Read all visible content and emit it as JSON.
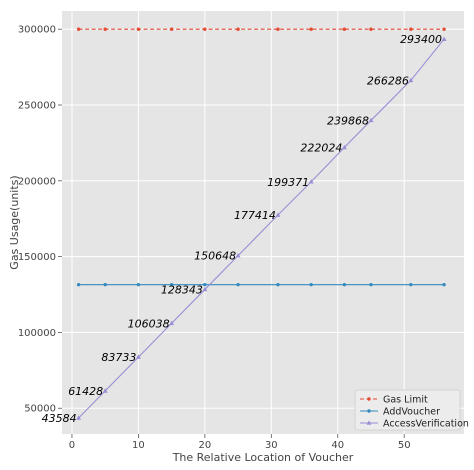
{
  "chart_data": {
    "type": "line",
    "title": "",
    "xlabel": "The Relative Location of Voucher",
    "ylabel": "Gas Usage(units)",
    "xlim": [
      -1.5,
      59
    ],
    "ylim": [
      33000,
      312000
    ],
    "xticks": [
      0,
      10,
      20,
      30,
      40,
      50
    ],
    "yticks": [
      50000,
      100000,
      150000,
      200000,
      250000,
      300000
    ],
    "grid": true,
    "legend_position": "lower-right",
    "series": [
      {
        "name": "Gas Limit",
        "color": "#e24a33",
        "style": "dashed",
        "marker": "point",
        "x": [
          1,
          5,
          10,
          15,
          20,
          25,
          31,
          36,
          41,
          45,
          51,
          56
        ],
        "y": [
          300000,
          300000,
          300000,
          300000,
          300000,
          300000,
          300000,
          300000,
          300000,
          300000,
          300000,
          300000
        ]
      },
      {
        "name": "AddVoucher",
        "color": "#348abd",
        "style": "solid",
        "marker": "point",
        "x": [
          1,
          5,
          10,
          15,
          20,
          25,
          31,
          36,
          41,
          45,
          51,
          56
        ],
        "y": [
          131500,
          131500,
          131500,
          131500,
          131500,
          131500,
          131500,
          131500,
          131500,
          131500,
          131500,
          131500
        ]
      },
      {
        "name": "AccessVerification",
        "color": "#988ed5",
        "style": "solid",
        "marker": "triangle",
        "x": [
          1,
          5,
          10,
          15,
          20,
          25,
          31,
          36,
          41,
          45,
          51,
          56
        ],
        "y": [
          43584,
          61428,
          83733,
          106038,
          128343,
          150648,
          177414,
          199371,
          222024,
          239868,
          266286,
          293400
        ]
      }
    ],
    "annotations": [
      {
        "text": "43584",
        "x": 1,
        "y": 43584
      },
      {
        "text": "61428",
        "x": 5,
        "y": 61428
      },
      {
        "text": "83733",
        "x": 10,
        "y": 83733
      },
      {
        "text": "106038",
        "x": 15,
        "y": 106038
      },
      {
        "text": "128343",
        "x": 20,
        "y": 128343
      },
      {
        "text": "150648",
        "x": 25,
        "y": 150648
      },
      {
        "text": "177414",
        "x": 31,
        "y": 177414
      },
      {
        "text": "199371",
        "x": 36,
        "y": 199371
      },
      {
        "text": "222024",
        "x": 41,
        "y": 222024
      },
      {
        "text": "239868",
        "x": 45,
        "y": 239868
      },
      {
        "text": "266286",
        "x": 51,
        "y": 266286
      },
      {
        "text": "293400",
        "x": 56,
        "y": 293400
      }
    ]
  }
}
